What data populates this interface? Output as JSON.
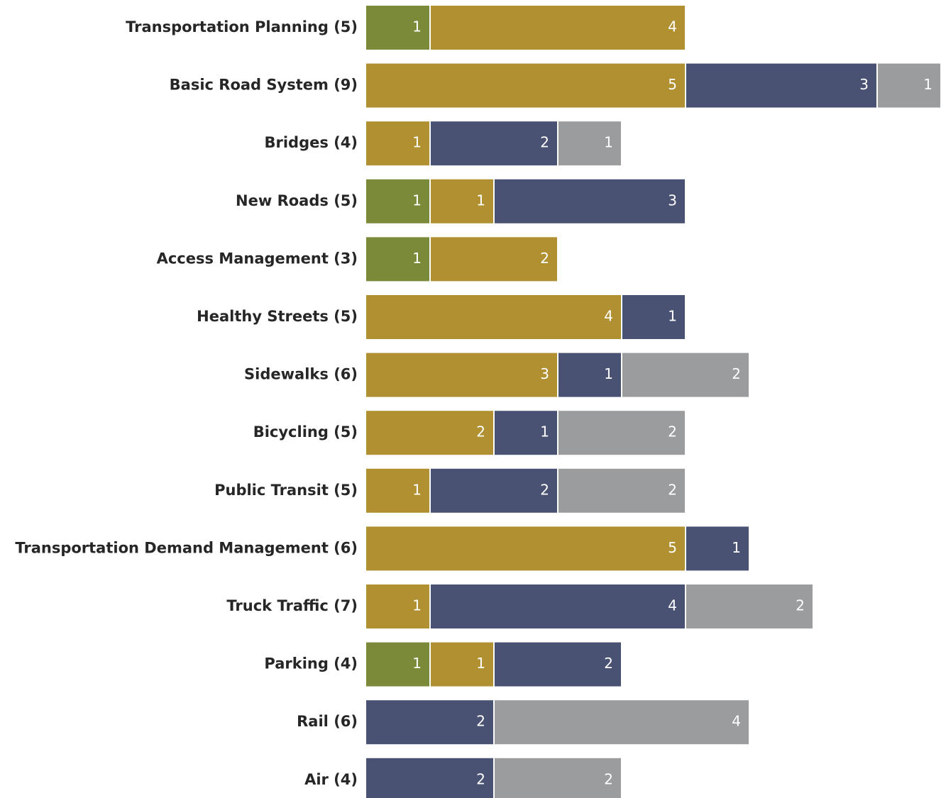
{
  "chart_data": {
    "type": "bar",
    "orientation": "horizontal",
    "stacked": true,
    "title": "",
    "xlabel": "",
    "ylabel": "",
    "grid": false,
    "legend": "none",
    "categories": [
      "Transportation Planning (5)",
      "Basic Road System (9)",
      "Bridges (4)",
      "New Roads (5)",
      "Access Management (3)",
      "Healthy Streets (5)",
      "Sidewalks (6)",
      "Bicycling (5)",
      "Public Transit (5)",
      "Transportation Demand Management (6)",
      "Truck Traffic (7)",
      "Parking (4)",
      "Rail (6)",
      "Air (4)"
    ],
    "series": [
      {
        "color": "#7a8a38",
        "values": [
          1,
          0,
          0,
          1,
          1,
          0,
          0,
          0,
          0,
          0,
          0,
          1,
          0,
          0
        ]
      },
      {
        "color": "#b09030",
        "values": [
          4,
          5,
          1,
          1,
          2,
          4,
          3,
          2,
          1,
          5,
          1,
          1,
          0,
          0
        ]
      },
      {
        "color": "#4a5273",
        "values": [
          0,
          3,
          2,
          3,
          0,
          1,
          1,
          1,
          2,
          1,
          4,
          2,
          2,
          2
        ]
      },
      {
        "color": "#9b9c9e",
        "values": [
          0,
          1,
          1,
          0,
          0,
          0,
          2,
          2,
          2,
          0,
          2,
          0,
          4,
          2
        ]
      }
    ],
    "xlim": [
      0,
      9
    ]
  }
}
